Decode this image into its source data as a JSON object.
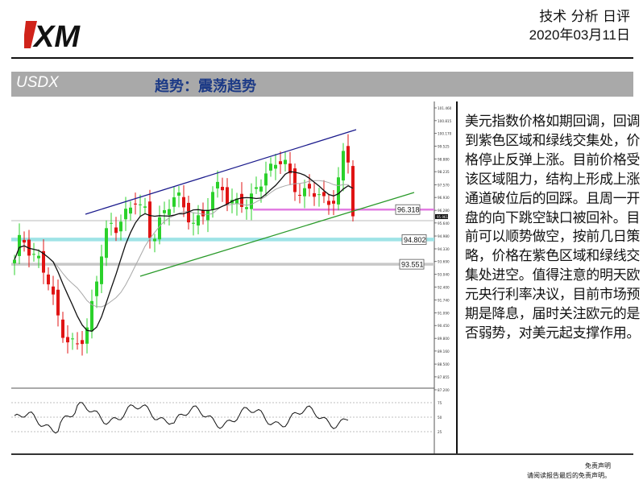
{
  "header": {
    "logo_text": "XM",
    "report_type": "技术 分析 日评",
    "date": "2020年03月11日"
  },
  "title_bar": {
    "symbol": "USDX",
    "trend": "趋势：震荡趋势"
  },
  "chart_data": {
    "type": "candlestick",
    "price_levels": [
      {
        "label": "96.318",
        "value": 96.318,
        "color": "#e27ce2"
      },
      {
        "label": "94.802",
        "value": 94.802,
        "color": "#9fe3e6"
      },
      {
        "label": "93.551",
        "value": 93.551,
        "color": "#c8c8c8"
      }
    ],
    "current_price_label": "95.961",
    "y_axis_ticks": [
      "101.460",
      "100.815",
      "100.170",
      "99.525",
      "98.880",
      "98.235",
      "97.570",
      "96.930",
      "96.280",
      "95.640",
      "94.980",
      "94.330",
      "93.690",
      "93.040",
      "92.400",
      "91.740",
      "91.090",
      "90.450",
      "89.800",
      "89.160",
      "88.500",
      "87.855",
      "87.200"
    ],
    "oscillator_ticks": [
      "75",
      "50",
      "25"
    ],
    "indicators": [
      "upper channel line (blue)",
      "lower channel line (green)",
      "moving average (black)",
      "moving average (grey)"
    ],
    "colors": {
      "up": "#2bd12b",
      "down": "#e01414",
      "channel_upper": "#1a1a8c",
      "channel_lower": "#2a9a2a",
      "ma_black": "#111111",
      "ma_grey": "#a8a8a8"
    }
  },
  "commentary": "美元指数价格如期回调，回调到紫色区域和绿线交集处，价格停止反弹上涨。目前价格受该区域阻力，结构上形成上涨通道破位后的回踩。且周一开盘的向下跳空缺口被回补。目前可以顺势做空，按前几日策略，价格在紫色区域和绿线交集处进空。值得注意的明天欧元央行利率决议，目前市场预期是降息，届时关注欧元的是否弱势，对美元起支撑作用。",
  "footer": {
    "disclaimer_title": "免责声明",
    "disclaimer_text": "请阅读报告最后的免责声明。"
  }
}
